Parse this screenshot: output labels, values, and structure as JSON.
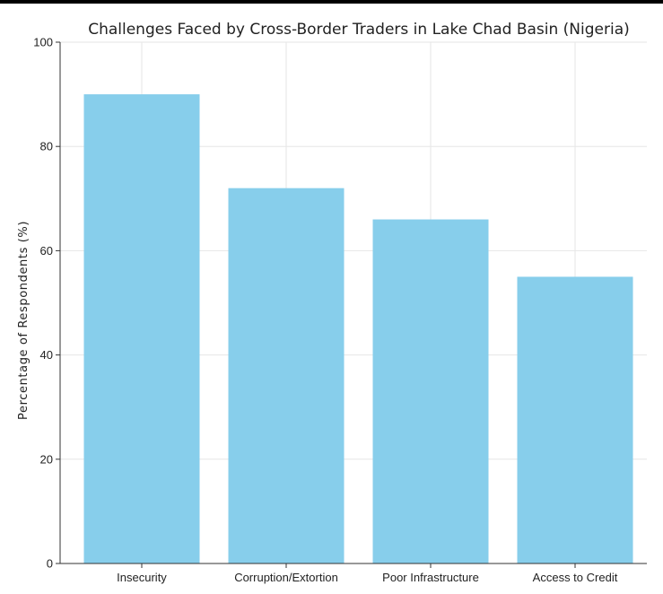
{
  "chart_data": {
    "type": "bar",
    "title": "Challenges Faced by Cross-Border Traders in Lake Chad Basin (Nigeria)",
    "xlabel": "",
    "ylabel": "Percentage of Respondents (%)",
    "categories": [
      "Insecurity",
      "Corruption/Extortion",
      "Poor Infrastructure",
      "Access to Credit"
    ],
    "values": [
      90,
      72,
      66,
      55
    ],
    "ylim": [
      0,
      100
    ],
    "yticks": [
      0,
      20,
      40,
      60,
      80,
      100
    ],
    "grid": true,
    "bar_color": "#87ceeb"
  }
}
